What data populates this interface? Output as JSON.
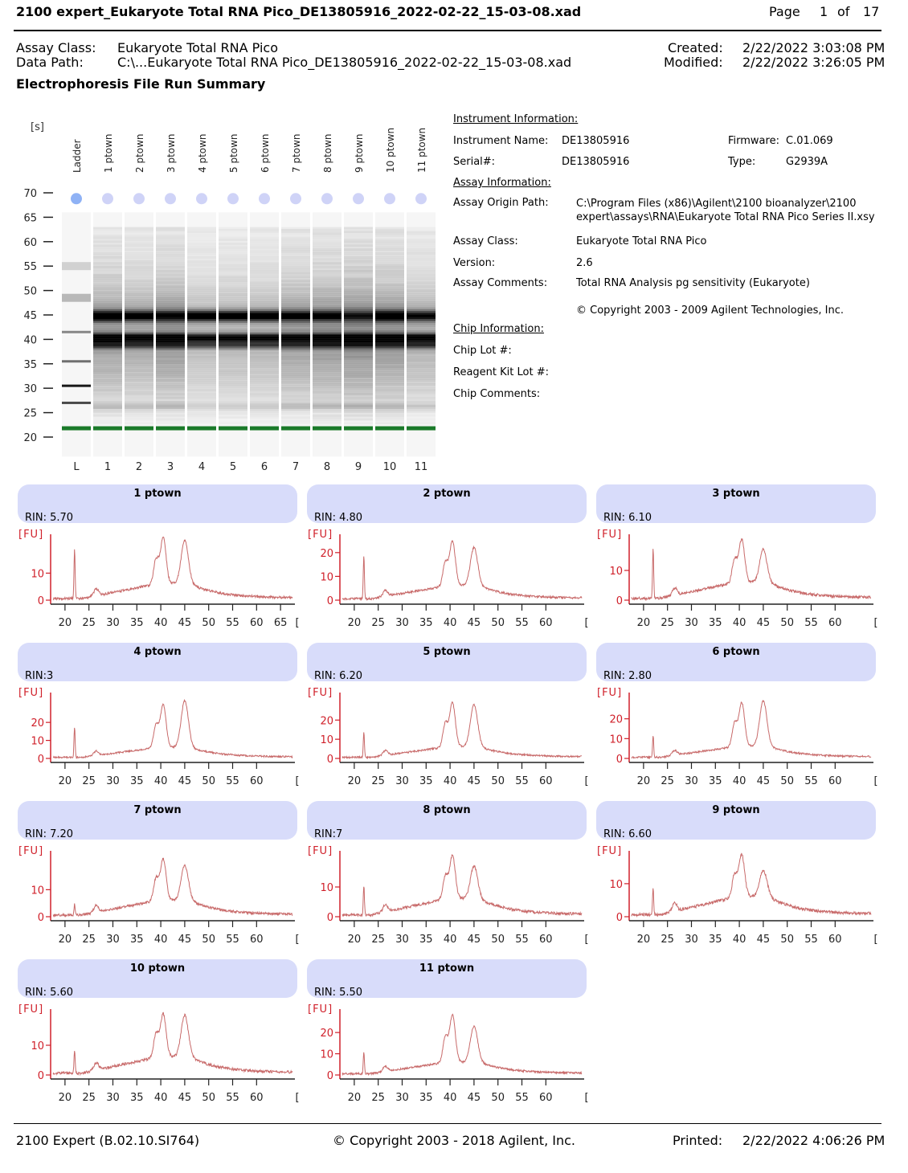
{
  "header": {
    "title": "2100 expert_Eukaryote Total RNA Pico_DE13805916_2022-02-22_15-03-08.xad",
    "page_label": "Page",
    "page": "1",
    "of_label": "of",
    "total_pages": "17"
  },
  "meta": {
    "assay_class_label": "Assay Class:",
    "assay_class": "Eukaryote Total RNA Pico",
    "data_path_label": "Data Path:",
    "data_path": "C:\\...Eukaryote Total RNA Pico_DE13805916_2022-02-22_15-03-08.xad",
    "created_label": "Created:",
    "created": "2/22/2022 3:03:08 PM",
    "modified_label": "Modified:",
    "modified": "2/22/2022 3:26:05 PM"
  },
  "section_title": "Electrophoresis File Run Summary",
  "gel": {
    "unit": "[s]",
    "yticks": [
      70,
      65,
      60,
      55,
      50,
      45,
      40,
      35,
      30,
      25,
      20
    ],
    "lanes": [
      {
        "name": "Ladder",
        "short": "L"
      },
      {
        "name": "1 ptown",
        "short": "1"
      },
      {
        "name": "2 ptown",
        "short": "2"
      },
      {
        "name": "3 ptown",
        "short": "3"
      },
      {
        "name": "4 ptown",
        "short": "4"
      },
      {
        "name": "5 ptown",
        "short": "5"
      },
      {
        "name": "6 ptown",
        "short": "6"
      },
      {
        "name": "7 ptown",
        "short": "7"
      },
      {
        "name": "8 ptown",
        "short": "8"
      },
      {
        "name": "9 ptown",
        "short": "9"
      },
      {
        "name": "10 ptown",
        "short": "10"
      },
      {
        "name": "11 ptown",
        "short": "11"
      }
    ],
    "ladder_bands_s": [
      55,
      48.5,
      41.5,
      35.5,
      30.5,
      27
    ],
    "marker_s": 21.8,
    "upper_marker_s": 68.8,
    "colors": {
      "marker": "#1a7a2a",
      "upper_marker_ladder": "#8fb2f5",
      "upper_marker": "#cfd3f7"
    }
  },
  "instrument": {
    "heading": "Instrument Information:",
    "name_label": "Instrument Name:",
    "name": "DE13805916",
    "serial_label": "Serial#:",
    "serial": "DE13805916",
    "firmware_label": "Firmware:",
    "firmware": "C.01.069",
    "type_label": "Type:",
    "type": "G2939A"
  },
  "assay": {
    "heading": "Assay Information:",
    "origin_label": "Assay Origin Path:",
    "origin_line1": "C:\\Program Files (x86)\\Agilent\\2100 bioanalyzer\\2100",
    "origin_line2": "expert\\assays\\RNA\\Eukaryote Total RNA Pico Series II.xsy",
    "class_label": "Assay Class:",
    "class": "Eukaryote Total RNA Pico",
    "version_label": "Version:",
    "version": "2.6",
    "comments_label": "Assay Comments:",
    "comments": "Total RNA Analysis pg sensitivity (Eukaryote)",
    "copyright": "© Copyright 2003 - 2009 Agilent Technologies, Inc."
  },
  "chip": {
    "heading": "Chip Information:",
    "lot_label": "Chip Lot #:",
    "reagent_label": "Reagent Kit Lot #:",
    "comments_label": "Chip Comments:"
  },
  "chart_data": [
    {
      "type": "line",
      "title": "1  ptown",
      "rin": "RIN: 5.70",
      "ylabel": "[FU]",
      "xlabel": "[s]",
      "yticks": [
        0,
        10
      ],
      "ylim": [
        0,
        22
      ],
      "xticks": [
        20,
        25,
        30,
        35,
        40,
        45,
        50,
        55,
        60,
        65
      ],
      "xlim": [
        17,
        68
      ],
      "peaks": {
        "marker": [
          22,
          18
        ],
        "s18": [
          40.5,
          20
        ],
        "s28": [
          45,
          20
        ]
      }
    },
    {
      "type": "line",
      "title": "2 ptown",
      "rin": "RIN: 4.80",
      "ylabel": "[FU]",
      "xlabel": "[s]",
      "yticks": [
        0,
        10,
        20
      ],
      "ylim": [
        0,
        25
      ],
      "xticks": [
        20,
        25,
        30,
        35,
        40,
        45,
        50,
        55,
        60
      ],
      "xlim": [
        17,
        68
      ],
      "peaks": {
        "marker": [
          22,
          18
        ],
        "s18": [
          40.5,
          22
        ],
        "s28": [
          45,
          20
        ]
      }
    },
    {
      "type": "line",
      "title": "3 ptown",
      "rin": "RIN: 6.10",
      "ylabel": "[FU]",
      "xlabel": "[s]",
      "yticks": [
        0,
        10
      ],
      "ylim": [
        0,
        20
      ],
      "xticks": [
        20,
        25,
        30,
        35,
        40,
        45,
        50,
        55,
        60
      ],
      "xlim": [
        17,
        68
      ],
      "peaks": {
        "marker": [
          22,
          17
        ],
        "s18": [
          40.5,
          17
        ],
        "s28": [
          45,
          15
        ]
      }
    },
    {
      "type": "line",
      "title": "4 ptown",
      "rin": "RIN:3",
      "ylabel": "[FU]",
      "xlabel": "[s]",
      "yticks": [
        0,
        10,
        20
      ],
      "ylim": [
        0,
        33
      ],
      "xticks": [
        20,
        25,
        30,
        35,
        40,
        45,
        50,
        55,
        60
      ],
      "xlim": [
        17,
        68
      ],
      "peaks": {
        "marker": [
          22,
          17
        ],
        "s18": [
          40.5,
          28
        ],
        "s28": [
          45,
          30
        ]
      }
    },
    {
      "type": "line",
      "title": "5 ptown",
      "rin": "RIN: 6.20",
      "ylabel": "[FU]",
      "xlabel": "[s]",
      "yticks": [
        0,
        10,
        20
      ],
      "ylim": [
        0,
        31
      ],
      "xticks": [
        20,
        25,
        30,
        35,
        40,
        45,
        50,
        55,
        60
      ],
      "xlim": [
        17,
        68
      ],
      "peaks": {
        "marker": [
          22,
          13
        ],
        "s18": [
          40.5,
          27
        ],
        "s28": [
          45,
          26
        ]
      }
    },
    {
      "type": "line",
      "title": "6 ptown",
      "rin": "RIN: 2.80",
      "ylabel": "[FU]",
      "xlabel": "[s]",
      "yticks": [
        0,
        10,
        20
      ],
      "ylim": [
        0,
        30
      ],
      "xticks": [
        20,
        25,
        30,
        35,
        40,
        45,
        50,
        55,
        60
      ],
      "xlim": [
        17,
        68
      ],
      "peaks": {
        "marker": [
          22,
          11
        ],
        "s18": [
          40.5,
          26
        ],
        "s28": [
          45,
          27
        ]
      }
    },
    {
      "type": "line",
      "title": "7 ptown",
      "rin": "RIN: 7.20",
      "ylabel": "[FU]",
      "xlabel": "[s]",
      "yticks": [
        0,
        10
      ],
      "ylim": [
        0,
        22
      ],
      "xticks": [
        20,
        25,
        30,
        35,
        40,
        45,
        50,
        55,
        60
      ],
      "xlim": [
        17,
        68
      ],
      "peaks": {
        "marker": [
          22,
          4
        ],
        "s18": [
          40.5,
          18
        ],
        "s28": [
          45,
          17
        ]
      }
    },
    {
      "type": "line",
      "title": "8 ptown",
      "rin": "RIN:7",
      "ylabel": "[FU]",
      "xlabel": "[s]",
      "yticks": [
        0,
        10
      ],
      "ylim": [
        0,
        20
      ],
      "xticks": [
        20,
        25,
        30,
        35,
        40,
        45,
        50,
        55,
        60
      ],
      "xlim": [
        17,
        68
      ],
      "peaks": {
        "marker": [
          22,
          10
        ],
        "s18": [
          40.5,
          17
        ],
        "s28": [
          45,
          15
        ]
      }
    },
    {
      "type": "line",
      "title": "9 ptown",
      "rin": "RIN: 6.60",
      "ylabel": "[FU]",
      "xlabel": "[s]",
      "yticks": [
        0,
        10
      ],
      "ylim": [
        0,
        18
      ],
      "xticks": [
        20,
        25,
        30,
        35,
        40,
        45,
        50,
        55,
        60
      ],
      "xlim": [
        17,
        68
      ],
      "peaks": {
        "marker": [
          22,
          8
        ],
        "s18": [
          40.5,
          15
        ],
        "s28": [
          45,
          12
        ]
      }
    },
    {
      "type": "line",
      "title": "10 ptown",
      "rin": "RIN: 5.60",
      "ylabel": "[FU]",
      "xlabel": "[s]",
      "yticks": [
        0,
        10
      ],
      "ylim": [
        0,
        20
      ],
      "xticks": [
        20,
        25,
        30,
        35,
        40,
        45,
        50,
        55,
        60
      ],
      "xlim": [
        17,
        68
      ],
      "peaks": {
        "marker": [
          22,
          8
        ],
        "s18": [
          40.5,
          17
        ],
        "s28": [
          45,
          18
        ]
      }
    },
    {
      "type": "line",
      "title": "11 ptown",
      "rin": "RIN: 5.50",
      "ylabel": "[FU]",
      "xlabel": "[s]",
      "yticks": [
        0,
        10,
        20
      ],
      "ylim": [
        0,
        28
      ],
      "xticks": [
        20,
        25,
        30,
        35,
        40,
        45,
        50,
        55,
        60
      ],
      "xlim": [
        17,
        68
      ],
      "peaks": {
        "marker": [
          22,
          10
        ],
        "s18": [
          40.5,
          26
        ],
        "s28": [
          45,
          21
        ]
      }
    }
  ],
  "colors": {
    "trace": "#c86a6a",
    "axis_y": "#d0202a",
    "panel_header": "#d8dcfa"
  },
  "footer": {
    "version": "2100 Expert (B.02.10.SI764)",
    "copyright": "© Copyright 2003 - 2018 Agilent, Inc.",
    "printed_label": "Printed:",
    "printed": "2/22/2022 4:06:26 PM"
  }
}
